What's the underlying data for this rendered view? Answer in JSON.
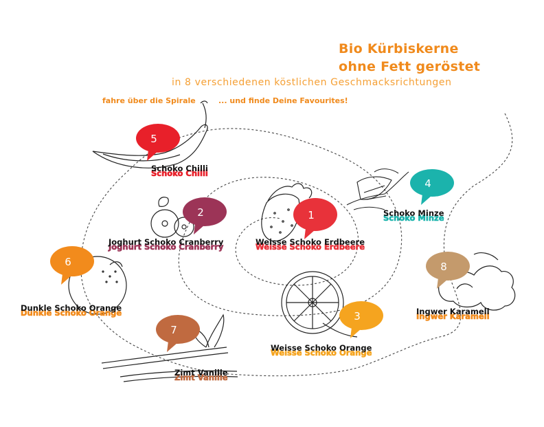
{
  "header": {
    "title_line1": "Bio Kürbiskerne",
    "title_line2": "ohne Fett geröstet",
    "subtitle": "in 8 verschiedenen köstlichen Geschmacksrichtungen",
    "hint_left": "fahre über die Spirale",
    "hint_right": "... und finde Deine Favourites!"
  },
  "flavors": [
    {
      "number": "1",
      "name": "Weisse Schoko Erdbeere",
      "color": "#e8323a",
      "icon": "strawberry-icon"
    },
    {
      "number": "2",
      "name": "Joghurt Schoko Cranberry",
      "color": "#9c3457",
      "icon": "cranberry-icon"
    },
    {
      "number": "3",
      "name": "Weisse Schoko Orange",
      "color": "#f5a41f",
      "icon": "orange-slice-icon"
    },
    {
      "number": "4",
      "name": "Schoko Minze",
      "color": "#1bb3ac",
      "icon": "mint-leaf-icon"
    },
    {
      "number": "5",
      "name": "Schoko Chilli",
      "color": "#e8202a",
      "icon": "chilli-icon"
    },
    {
      "number": "6",
      "name": "Dunkle Schoko Orange",
      "color": "#f28b1c",
      "icon": "orange-icon"
    },
    {
      "number": "7",
      "name": "Zimt Vanille",
      "color": "#c06a40",
      "icon": "cinnamon-vanilla-icon"
    },
    {
      "number": "8",
      "name": "Ingwer Karamell",
      "color": "#c49a6c",
      "icon": "ginger-icon"
    }
  ]
}
